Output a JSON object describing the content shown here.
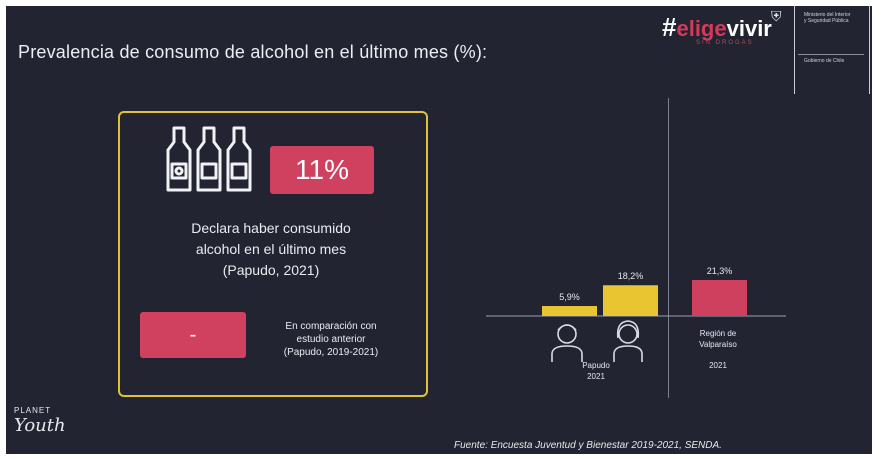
{
  "slide": {
    "title": "Prevalencia de consumo de alcohol en el último mes (%):",
    "brand": {
      "hash": "#",
      "part1": "elige",
      "part2": "vivir",
      "tagline": "SIN DROGAS"
    },
    "gov": {
      "ministry": "Ministerio del Interior y Seguridad Pública",
      "footer": "Gobierno de Chile"
    }
  },
  "panel": {
    "percent": "11%",
    "description_lines": [
      "Declara haber consumido",
      "alcohol en el último mes",
      "(Papudo, 2021)"
    ],
    "change": "-",
    "compare_lines": [
      "En comparación con",
      "estudio anterior",
      "(Papudo, 2019-2021)"
    ]
  },
  "chart_data": {
    "type": "bar",
    "series": [
      {
        "label": "5,9%",
        "value": 5.9,
        "color": "#e9c531"
      },
      {
        "label": "18,2%",
        "value": 18.2,
        "color": "#e9c531"
      },
      {
        "label": "21,3%",
        "value": 21.3,
        "color": "#cf3f5e"
      }
    ],
    "groups": [
      {
        "label_lines": [
          "Papudo",
          "2021"
        ]
      },
      {
        "label_lines": [
          "Región de",
          "Valparaíso",
          "2021"
        ]
      }
    ]
  },
  "footer": {
    "logo_top": "PLANET",
    "logo_bottom": "Youth",
    "source": "Fuente: Encuesta Juventud y Bienestar 2019-2021, SENDA."
  },
  "colors": {
    "background": "#232431",
    "accent_pink": "#d0405f",
    "accent_yellow": "#e9c531",
    "frame": "#e0c23a"
  }
}
